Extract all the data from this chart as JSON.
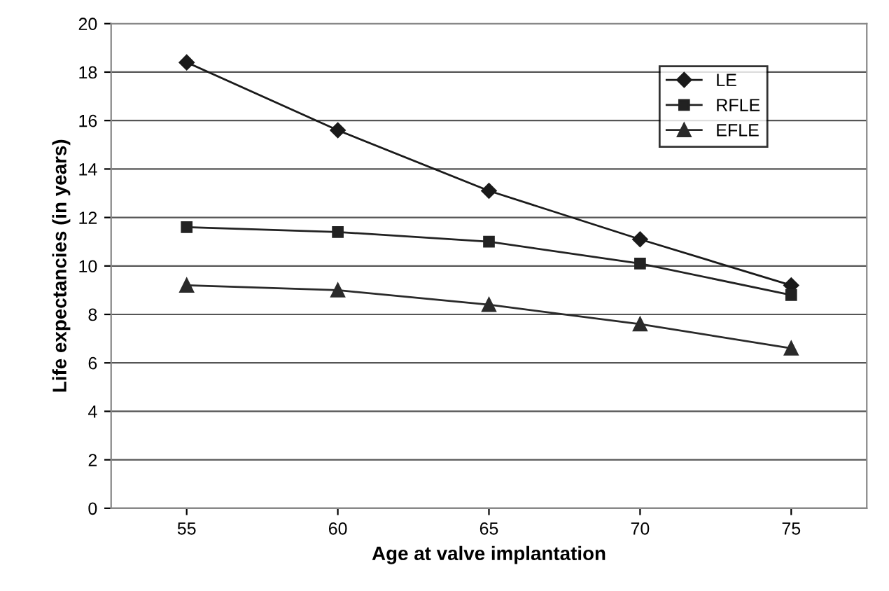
{
  "chart_data": {
    "type": "line",
    "xlabel": "Age at valve implantation",
    "ylabel": "Life expectancies (in years)",
    "categories": [
      "55",
      "60",
      "65",
      "70",
      "75"
    ],
    "series": [
      {
        "name": "LE",
        "color": "#1a1a1a",
        "marker": "diamond",
        "values": [
          18.4,
          15.6,
          13.1,
          11.1,
          9.2
        ]
      },
      {
        "name": "RFLE",
        "color": "#222222",
        "marker": "square",
        "values": [
          11.6,
          11.4,
          11.0,
          10.1,
          8.8
        ]
      },
      {
        "name": "EFLE",
        "color": "#2a2a2a",
        "marker": "triangle",
        "values": [
          9.2,
          9.0,
          8.4,
          7.6,
          6.6
        ]
      }
    ],
    "ylim": [
      0,
      20
    ],
    "yticks": [
      0,
      2,
      4,
      6,
      8,
      10,
      12,
      14,
      16,
      18,
      20
    ],
    "grid": "y",
    "legend": "top right",
    "line_style": "solid"
  }
}
